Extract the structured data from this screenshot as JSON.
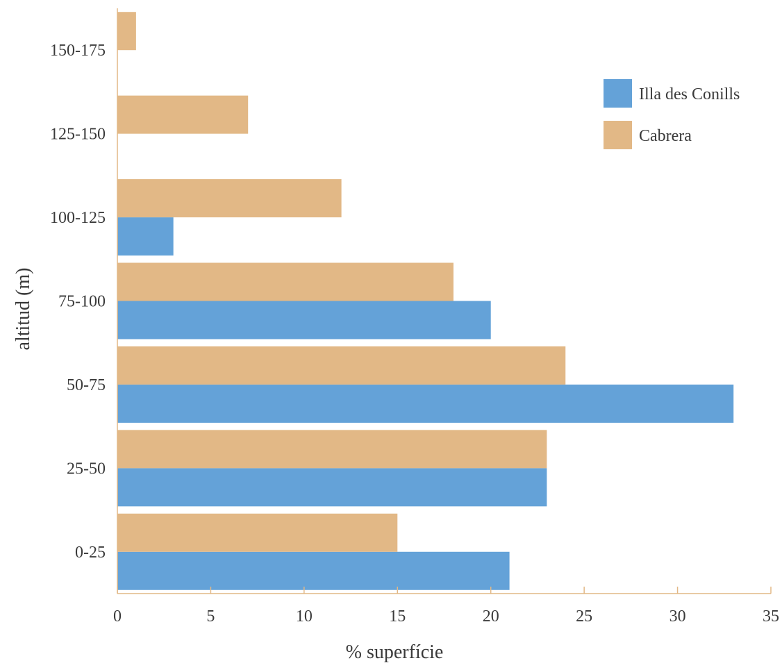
{
  "chart_data": {
    "type": "bar",
    "orientation": "horizontal",
    "categories": [
      "0-25",
      "25-50",
      "50-75",
      "75-100",
      "100-125",
      "125-150",
      "150-175"
    ],
    "series": [
      {
        "name": "Illa des Conills",
        "color": "#64a2d8",
        "values": [
          21,
          23,
          33,
          20,
          3,
          0,
          0
        ]
      },
      {
        "name": "Cabrera",
        "color": "#e2b886",
        "values": [
          15,
          23,
          24,
          18,
          12,
          7,
          1
        ]
      }
    ],
    "xlabel": "% superfície",
    "ylabel": "altitud (m)",
    "xlim": [
      0,
      35
    ],
    "xticks": [
      "0",
      "5",
      "10",
      "15",
      "20",
      "25",
      "30",
      "35"
    ],
    "axis_color": "#e2b886",
    "grid": false,
    "legend_position": "top-right"
  }
}
